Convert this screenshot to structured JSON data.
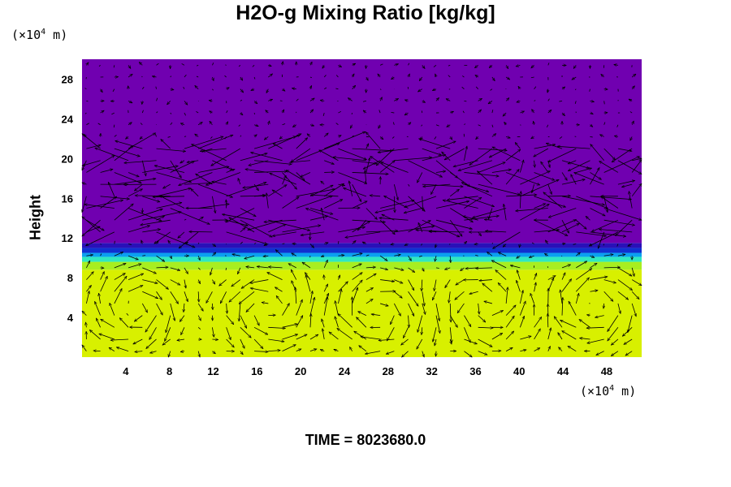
{
  "chart_data": {
    "type": "heatmap",
    "title": "H2O-g Mixing Ratio [kg/kg]",
    "xlabel": "",
    "ylabel": "Height",
    "x_unit": {
      "prefix": "(×10",
      "exp": "4",
      "suffix": " m)"
    },
    "y_unit": {
      "prefix": "(×10",
      "exp": "4",
      "suffix": " m)"
    },
    "xlim": [
      0,
      51.2
    ],
    "ylim": [
      0,
      30
    ],
    "xticks": [
      4,
      8,
      12,
      16,
      20,
      24,
      28,
      32,
      36,
      40,
      44,
      48
    ],
    "yticks": [
      4,
      8,
      12,
      16,
      20,
      24,
      28
    ],
    "field_layers": [
      {
        "from": 0,
        "to": 8.8,
        "color": "#d8f000"
      },
      {
        "from": 8.8,
        "to": 9.6,
        "color": "#a8ee20"
      },
      {
        "from": 9.6,
        "to": 10.1,
        "color": "#30e8c0"
      },
      {
        "from": 10.1,
        "to": 10.5,
        "color": "#0aa0f0"
      },
      {
        "from": 10.5,
        "to": 11.0,
        "color": "#1030d0"
      },
      {
        "from": 11.0,
        "to": 11.5,
        "color": "#2a10b8"
      },
      {
        "from": 11.5,
        "to": 30,
        "color": "#7000b0"
      }
    ],
    "vector_field": {
      "lower_rolls_x": [
        5,
        17,
        27,
        37,
        47
      ],
      "lower_rolls_y": 5,
      "upper_band": [
        12.5,
        21
      ],
      "grid_dx": 1.28,
      "grid_dy": 1.2
    }
  },
  "time_label": "TIME = 8023680.0"
}
